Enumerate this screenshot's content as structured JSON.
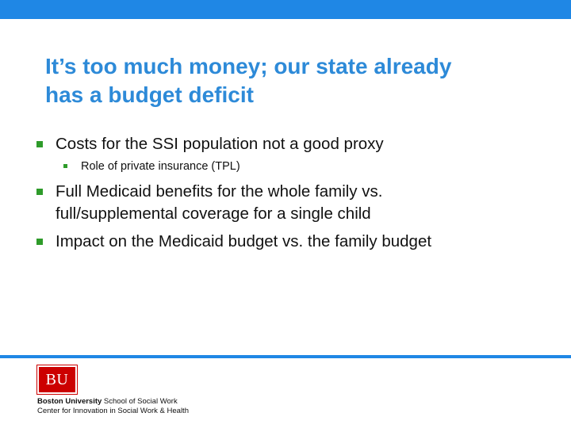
{
  "header": {
    "bar_color": "#1f87e5"
  },
  "slide": {
    "title_line1": "It’s too much money; our state already",
    "title_line2": "has a budget deficit",
    "bullets": [
      {
        "level": 1,
        "lines": [
          "Costs for the SSI population not a good proxy"
        ]
      },
      {
        "level": 2,
        "lines": [
          "Role of private insurance (TPL)"
        ]
      },
      {
        "level": 1,
        "lines": [
          "Full Medicaid benefits for the whole family vs.",
          "full/supplemental coverage for a single child"
        ]
      },
      {
        "level": 1,
        "lines": [
          "Impact on the Medicaid budget vs. the family budget"
        ]
      }
    ]
  },
  "footer": {
    "logo_mark": "BU",
    "school_bold": "Boston University",
    "school_rest": " School of Social Work",
    "center_line": "Center for Innovation in Social Work & Health"
  },
  "colors": {
    "title": "#2d8ad8",
    "bullet_marker": "#2e9b2a",
    "logo": "#cc0000"
  }
}
